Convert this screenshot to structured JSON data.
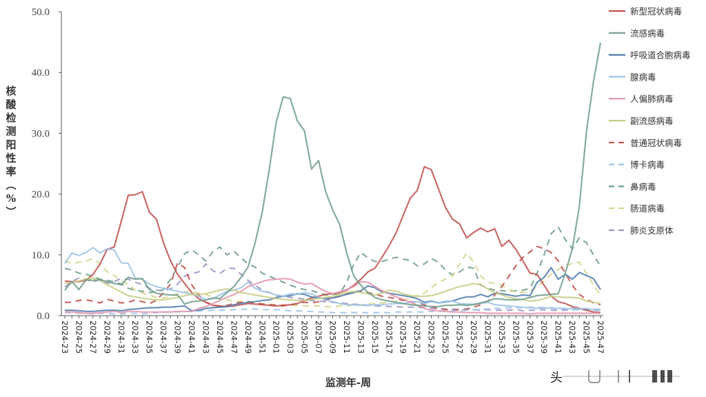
{
  "chart_data": {
    "type": "line",
    "title": "",
    "xlabel": "监测年-周",
    "ylabel": "核酸检测阳性率（%）",
    "ylim": [
      0,
      50
    ],
    "yticks": [
      "0.0",
      "10.0",
      "20.0",
      "30.0",
      "40.0",
      "50.0"
    ],
    "grid": false,
    "legend_position": "right",
    "x_tick_labels": [
      "2024-23",
      "2024-25",
      "2024-27",
      "2024-29",
      "2024-31",
      "2024-33",
      "2024-35",
      "2024-37",
      "2024-39",
      "2024-41",
      "2024-43",
      "2024-45",
      "2024-47",
      "2024-49",
      "2024-51",
      "2025-01",
      "2025-03",
      "2025-05",
      "2025-07",
      "2025-09",
      "2025-11",
      "2025-13",
      "2025-15",
      "2025-17",
      "2025-19",
      "2025-21",
      "2025-23",
      "2025-25",
      "2025-27",
      "2025-29",
      "2025-31",
      "2025-33",
      "2025-35",
      "2025-37",
      "2025-39",
      "2025-41",
      "2025-43",
      "2025-45",
      "2025-47"
    ],
    "x": [
      "2024-23",
      "2024-24",
      "2024-25",
      "2024-26",
      "2024-27",
      "2024-28",
      "2024-29",
      "2024-30",
      "2024-31",
      "2024-32",
      "2024-33",
      "2024-34",
      "2024-35",
      "2024-36",
      "2024-37",
      "2024-38",
      "2024-39",
      "2024-40",
      "2024-41",
      "2024-42",
      "2024-43",
      "2024-44",
      "2024-45",
      "2024-46",
      "2024-47",
      "2024-48",
      "2024-49",
      "2024-50",
      "2024-51",
      "2024-52",
      "2025-01",
      "2025-02",
      "2025-03",
      "2025-04",
      "2025-05",
      "2025-06",
      "2025-07",
      "2025-08",
      "2025-09",
      "2025-10",
      "2025-11",
      "2025-12",
      "2025-13",
      "2025-14",
      "2025-15",
      "2025-16",
      "2025-17",
      "2025-18",
      "2025-19",
      "2025-20",
      "2025-21",
      "2025-22",
      "2025-23",
      "2025-24",
      "2025-25",
      "2025-26",
      "2025-27",
      "2025-28",
      "2025-29",
      "2025-30",
      "2025-31",
      "2025-32",
      "2025-33",
      "2025-34",
      "2025-35",
      "2025-36",
      "2025-37",
      "2025-38",
      "2025-39",
      "2025-40",
      "2025-41",
      "2025-42",
      "2025-43",
      "2025-44",
      "2025-45",
      "2025-46",
      "2025-47"
    ],
    "series": [
      {
        "name": "新型冠状病毒",
        "color": "#c0504d",
        "dash": "solid",
        "values": [
          5.7,
          5.6,
          5.6,
          5.8,
          6.8,
          8.5,
          10.9,
          11.3,
          15.5,
          19.8,
          19.9,
          20.4,
          17.0,
          15.9,
          12.0,
          9.0,
          6.8,
          5.3,
          3.8,
          2.8,
          2.2,
          1.7,
          1.6,
          1.5,
          1.6,
          1.8,
          2.0,
          1.9,
          1.8,
          1.7,
          1.6,
          1.7,
          1.8,
          2.0,
          2.5,
          2.9,
          3.2,
          3.5,
          3.6,
          3.8,
          4.2,
          5.0,
          6.0,
          7.2,
          7.8,
          9.6,
          11.5,
          13.6,
          16.5,
          19.3,
          20.6,
          24.5,
          24.0,
          20.9,
          17.8,
          15.9,
          15.1,
          12.8,
          13.7,
          14.4,
          13.8,
          14.3,
          11.4,
          12.4,
          10.9,
          9.0,
          7.0,
          6.8,
          5.0,
          3.2,
          2.3,
          2.0,
          1.5,
          1.2,
          0.9,
          0.6,
          0.5
        ]
      },
      {
        "name": "流感病毒",
        "color": "#6f9e89",
        "dash": "solid",
        "values": [
          4.2,
          5.6,
          4.3,
          5.9,
          5.8,
          5.9,
          5.6,
          5.3,
          5.1,
          6.3,
          6.0,
          6.1,
          4.3,
          3.7,
          3.5,
          3.4,
          3.4,
          1.9,
          2.3,
          2.4,
          2.6,
          2.9,
          2.8,
          3.8,
          4.8,
          6.3,
          8.0,
          12.0,
          17.0,
          24.0,
          31.9,
          36.0,
          35.7,
          32.0,
          30.4,
          24.1,
          25.5,
          20.4,
          17.4,
          15.0,
          10.3,
          6.5,
          5.0,
          3.8,
          3.0,
          2.6,
          2.4,
          2.2,
          2.0,
          1.8,
          1.7,
          1.6,
          1.5,
          1.5,
          1.7,
          1.7,
          1.8,
          1.7,
          1.8,
          2.1,
          2.4,
          2.8,
          2.7,
          2.6,
          2.6,
          2.7,
          3.0,
          3.3,
          3.4,
          3.5,
          3.6,
          7.0,
          11.0,
          18.0,
          30.3,
          38.5,
          44.9
        ]
      },
      {
        "name": "呼吸道合胞病毒",
        "color": "#4f7bab",
        "dash": "solid",
        "values": [
          0.9,
          0.9,
          0.8,
          0.7,
          0.7,
          0.8,
          0.9,
          0.9,
          0.8,
          1.0,
          1.1,
          1.2,
          1.3,
          1.3,
          1.4,
          1.4,
          1.5,
          1.6,
          0.8,
          0.9,
          1.2,
          1.3,
          1.4,
          1.5,
          1.8,
          2.0,
          2.2,
          2.3,
          2.5,
          2.6,
          3.0,
          3.2,
          3.3,
          3.6,
          3.5,
          3.1,
          2.9,
          2.8,
          2.9,
          3.2,
          3.5,
          3.8,
          4.1,
          4.9,
          4.6,
          3.9,
          3.7,
          3.5,
          3.3,
          3.1,
          2.8,
          2.2,
          2.4,
          2.1,
          2.3,
          2.4,
          2.8,
          3.1,
          3.1,
          3.5,
          3.1,
          3.7,
          3.6,
          3.4,
          3.2,
          3.4,
          3.3,
          5.5,
          6.3,
          7.9,
          6.0,
          6.8,
          6.0,
          7.1,
          6.6,
          6.1,
          4.3
        ]
      },
      {
        "name": "腺病毒",
        "color": "#9dc3e6",
        "dash": "solid",
        "values": [
          8.6,
          10.3,
          9.9,
          10.4,
          11.2,
          10.3,
          11.0,
          10.8,
          8.7,
          8.6,
          6.2,
          6.0,
          5.2,
          4.8,
          4.5,
          4.3,
          4.0,
          3.8,
          3.5,
          3.2,
          2.6,
          2.8,
          3.4,
          4.0,
          4.2,
          4.6,
          5.5,
          4.5,
          4.0,
          3.8,
          3.4,
          3.2,
          3.6,
          3.5,
          3.8,
          3.6,
          3.0,
          2.6,
          2.3,
          2.0,
          1.8,
          1.8,
          1.7,
          1.7,
          1.8,
          1.8,
          1.9,
          2.0,
          2.0,
          2.2,
          2.3,
          2.0,
          2.3,
          2.1,
          2.2,
          2.4,
          2.0,
          1.9,
          1.9,
          2.0,
          2.2,
          1.8,
          1.7,
          1.6,
          1.5,
          1.4,
          1.3,
          1.2,
          1.3,
          1.2,
          1.2,
          1.1,
          1.2,
          1.1,
          1.2,
          1.0,
          1.0
        ]
      },
      {
        "name": "人偏肺病毒",
        "color": "#e394ab",
        "dash": "solid",
        "values": [
          0.6,
          0.6,
          0.5,
          0.4,
          0.4,
          0.5,
          0.6,
          0.7,
          0.5,
          0.7,
          0.7,
          0.6,
          0.6,
          0.6,
          0.6,
          0.6,
          0.7,
          0.7,
          0.7,
          1.2,
          1.5,
          2.0,
          2.5,
          3.0,
          3.5,
          4.0,
          4.8,
          5.2,
          5.6,
          5.9,
          6.0,
          6.1,
          6.0,
          5.5,
          5.2,
          5.3,
          4.6,
          4.0,
          3.6,
          3.9,
          4.3,
          4.8,
          5.6,
          5.5,
          4.8,
          4.1,
          3.6,
          3.1,
          2.7,
          2.2,
          1.7,
          1.2,
          0.9,
          0.8,
          0.7,
          0.6,
          0.6,
          0.5,
          0.5,
          0.5,
          0.4,
          0.4,
          0.4,
          0.4,
          0.4,
          0.4,
          0.3,
          0.4,
          0.4,
          0.4,
          0.4,
          0.4,
          0.4,
          0.4,
          0.4,
          0.4,
          0.4
        ]
      },
      {
        "name": "副流感病毒",
        "color": "#c7cc83",
        "dash": "solid",
        "values": [
          5.3,
          5.5,
          5.7,
          6.0,
          6.2,
          5.8,
          5.1,
          4.5,
          3.9,
          3.3,
          3.1,
          2.9,
          2.7,
          2.6,
          2.6,
          2.8,
          3.0,
          3.3,
          3.5,
          3.5,
          3.6,
          3.9,
          4.2,
          4.4,
          4.2,
          3.8,
          3.6,
          3.4,
          3.2,
          3.0,
          2.8,
          2.7,
          2.6,
          2.5,
          2.5,
          2.7,
          2.8,
          3.0,
          3.2,
          3.5,
          3.8,
          4.0,
          3.8,
          3.6,
          3.4,
          3.7,
          4.2,
          4.0,
          3.6,
          3.3,
          3.2,
          3.2,
          3.3,
          3.6,
          4.0,
          4.4,
          4.8,
          5.0,
          5.3,
          5.1,
          4.4,
          3.8,
          3.4,
          3.0,
          2.8,
          2.6,
          2.4,
          2.5,
          2.8,
          3.2,
          3.1,
          3.0,
          3.0,
          2.9,
          2.4,
          2.2,
          2.0
        ]
      },
      {
        "name": "普通冠状病毒",
        "color": "#c0504d",
        "dash": "dash",
        "values": [
          2.2,
          2.2,
          2.5,
          2.6,
          2.4,
          2.1,
          2.7,
          2.4,
          2.1,
          2.2,
          2.6,
          2.3,
          2.0,
          2.5,
          3.8,
          5.2,
          8.7,
          7.9,
          5.1,
          3.4,
          2.2,
          1.8,
          1.5,
          1.7,
          2.0,
          2.2,
          2.3,
          2.1,
          1.9,
          1.8,
          1.7,
          1.6,
          1.8,
          2.0,
          2.2,
          2.1,
          2.3,
          2.6,
          2.9,
          3.2,
          3.6,
          4.0,
          4.0,
          3.8,
          3.5,
          3.2,
          3.0,
          2.8,
          2.5,
          2.3,
          2.2,
          1.8,
          1.5,
          1.2,
          1.0,
          0.9,
          1.0,
          1.1,
          1.4,
          1.8,
          2.3,
          3.4,
          4.8,
          6.5,
          8.2,
          9.6,
          10.5,
          11.4,
          11.0,
          10.4,
          9.0,
          7.0,
          5.0,
          3.5,
          2.7,
          2.1,
          1.8
        ]
      },
      {
        "name": "博卡病毒",
        "color": "#9dc3e6",
        "dash": "dash",
        "values": [
          0.5,
          0.5,
          0.4,
          0.4,
          0.3,
          0.4,
          0.4,
          0.3,
          0.3,
          0.4,
          0.4,
          0.3,
          0.4,
          0.5,
          0.6,
          0.6,
          0.6,
          0.7,
          0.7,
          0.8,
          0.8,
          0.9,
          0.9,
          0.9,
          1.0,
          1.0,
          1.1,
          1.1,
          1.0,
          1.0,
          1.0,
          0.9,
          0.8,
          0.8,
          0.7,
          0.7,
          0.6,
          0.6,
          0.5,
          0.5,
          0.5,
          0.5,
          0.5,
          0.5,
          0.5,
          0.5,
          0.5,
          0.6,
          0.6,
          0.6,
          0.6,
          0.6,
          0.7,
          0.7,
          0.7,
          0.8,
          0.8,
          0.9,
          1.0,
          1.0,
          1.1,
          1.2,
          1.2,
          1.3,
          1.3,
          1.3,
          1.4,
          1.4,
          1.3,
          1.3,
          1.2,
          1.2,
          1.1,
          1.0,
          1.0,
          0.9,
          0.8
        ]
      },
      {
        "name": "鼻病毒",
        "color": "#6f9e89",
        "dash": "dash",
        "values": [
          7.8,
          7.5,
          7.0,
          6.8,
          6.5,
          6.0,
          5.8,
          5.6,
          5.2,
          4.5,
          4.2,
          4.0,
          3.8,
          3.9,
          4.3,
          6.0,
          8.0,
          10.2,
          10.8,
          10.0,
          9.0,
          10.5,
          11.3,
          10.0,
          10.6,
          9.5,
          8.5,
          8.0,
          7.0,
          6.5,
          6.0,
          5.5,
          5.0,
          4.6,
          4.3,
          4.1,
          3.8,
          3.4,
          3.5,
          3.6,
          5.5,
          8.5,
          10.4,
          9.5,
          8.9,
          8.9,
          9.3,
          9.6,
          9.3,
          9.1,
          8.2,
          8.5,
          9.4,
          8.8,
          7.5,
          6.7,
          7.2,
          8.0,
          7.8,
          5.0,
          4.5,
          4.2,
          4.1,
          4.0,
          4.1,
          4.2,
          4.5,
          7.0,
          10.0,
          13.5,
          14.6,
          12.5,
          11.0,
          12.8,
          12.0,
          10.0,
          8.1
        ]
      },
      {
        "name": "肠道病毒",
        "color": "#d5d58c",
        "dash": "dash",
        "values": [
          9.0,
          8.6,
          8.8,
          9.0,
          9.4,
          8.5,
          7.2,
          6.6,
          5.7,
          5.2,
          4.2,
          3.7,
          3.4,
          3.0,
          2.9,
          3.2,
          3.6,
          3.9,
          4.0,
          3.7,
          3.5,
          3.0,
          2.8,
          2.6,
          2.4,
          2.3,
          2.2,
          2.1,
          2.0,
          1.9,
          1.8,
          1.8,
          1.7,
          1.7,
          1.6,
          1.6,
          1.6,
          1.5,
          1.5,
          1.6,
          1.6,
          1.7,
          1.8,
          1.9,
          2.0,
          2.1,
          2.2,
          2.4,
          2.6,
          2.9,
          3.3,
          3.7,
          4.6,
          5.5,
          6.0,
          6.5,
          8.5,
          10.3,
          8.8,
          6.5,
          5.5,
          5.3,
          5.0,
          4.3,
          3.9,
          3.8,
          4.0,
          4.8,
          5.7,
          6.8,
          7.6,
          8.2,
          8.6,
          8.8,
          7.0,
          5.0,
          3.4
        ]
      },
      {
        "name": "肺炎支原体",
        "color": "#9c94c3",
        "dash": "dash",
        "values": [
          4.7,
          5.6,
          6.2,
          6.0,
          5.5,
          6.0,
          5.3,
          5.6,
          6.1,
          6.0,
          5.5,
          5.1,
          4.5,
          4.2,
          4.1,
          4.4,
          5.2,
          6.5,
          6.9,
          7.2,
          8.5,
          7.4,
          6.9,
          7.8,
          7.8,
          6.8,
          5.8,
          5.0,
          4.2,
          3.8,
          3.4,
          3.2,
          3.0,
          2.9,
          2.7,
          2.5,
          2.4,
          2.3,
          2.2,
          2.1,
          2.0,
          1.9,
          1.8,
          1.7,
          1.6,
          1.6,
          1.5,
          1.5,
          1.4,
          1.4,
          1.4,
          1.3,
          1.2,
          1.1,
          1.1,
          1.1,
          1.0,
          1.0,
          1.0,
          0.9,
          1.0,
          0.9,
          0.9,
          0.9,
          1.0,
          0.8,
          0.9,
          0.9,
          1.0,
          0.9,
          0.9,
          0.9,
          1.0,
          1.0,
          1.0,
          1.1,
          1.0
        ]
      }
    ]
  },
  "watermark": {
    "text": "头条"
  }
}
